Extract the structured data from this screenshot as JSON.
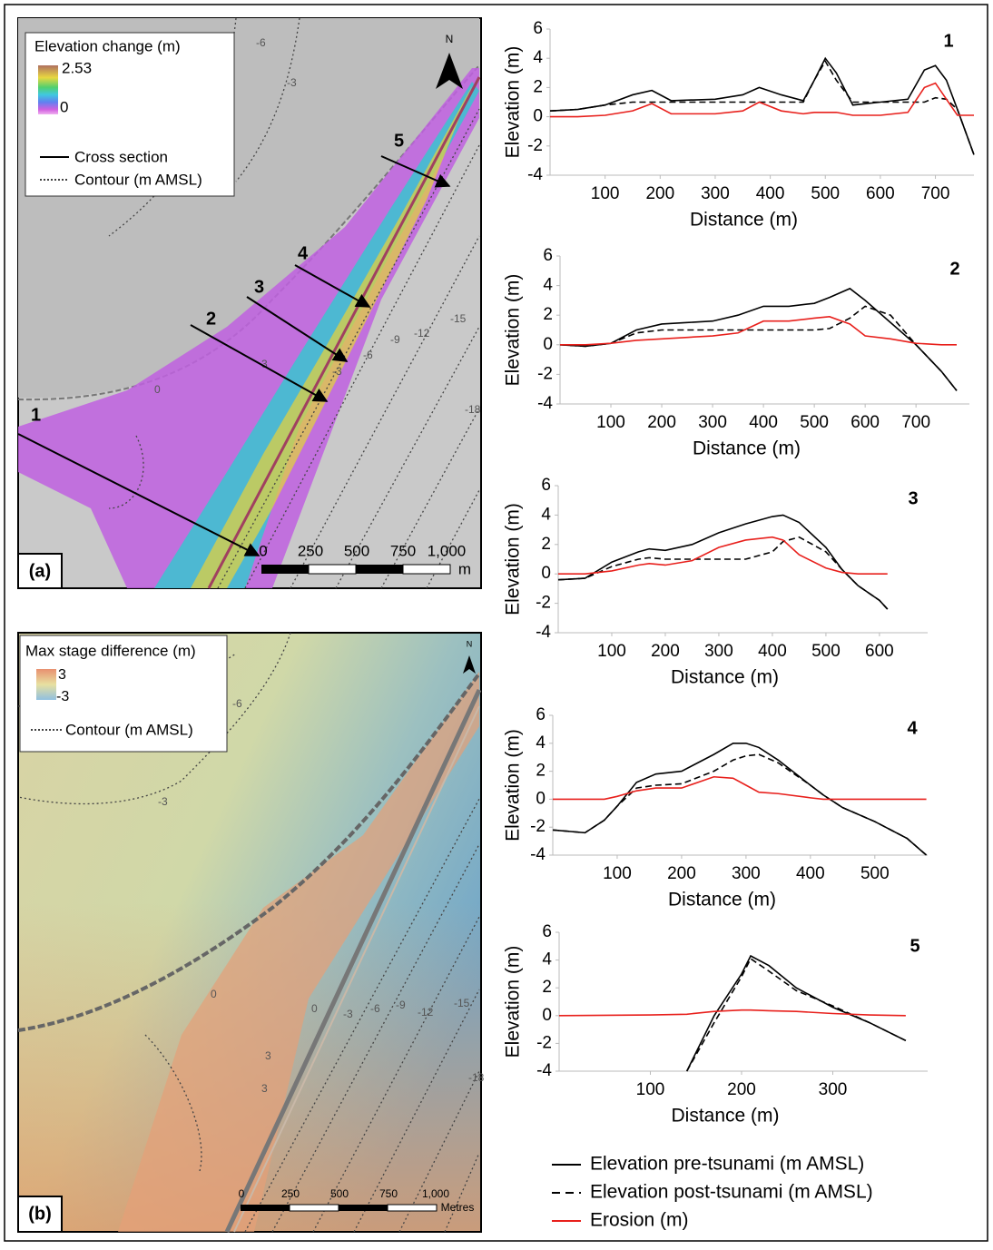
{
  "chart_data": [
    {
      "type": "line",
      "title": "1",
      "x_label": "Distance (m)",
      "y_label": "Elevation (m)",
      "x": [
        0,
        50,
        100,
        150,
        185,
        220,
        300,
        350,
        380,
        420,
        460,
        480,
        500,
        520,
        550,
        600,
        650,
        680,
        700,
        720,
        740,
        770
      ],
      "series": [
        {
          "color": "#000000",
          "values": [
            0.4,
            0.5,
            0.8,
            1.5,
            1.8,
            1.1,
            1.2,
            1.5,
            2.0,
            1.5,
            1.1,
            2.5,
            4.0,
            3.0,
            0.8,
            1.0,
            1.2,
            3.2,
            3.5,
            2.5,
            0.5,
            -2.6
          ]
        },
        {
          "color": "#000000",
          "dashed": true,
          "values": [
            0.4,
            0.5,
            0.8,
            1.0,
            1.0,
            1.0,
            1.0,
            1.0,
            1.0,
            1.0,
            1.0,
            2.5,
            3.8,
            2.5,
            1.0,
            1.0,
            1.0,
            1.0,
            1.3,
            1.2,
            0.5,
            -2.6
          ]
        },
        {
          "color": "#e8201c",
          "values": [
            0,
            0,
            0.1,
            0.4,
            0.9,
            0.2,
            0.2,
            0.4,
            1.0,
            0.4,
            0.2,
            0.3,
            0.3,
            0.3,
            0.1,
            0.1,
            0.3,
            2.0,
            2.3,
            1.2,
            0.1,
            0.1
          ]
        }
      ],
      "xlim": [
        0,
        770
      ],
      "xticks": [
        100,
        200,
        300,
        400,
        500,
        600,
        700
      ],
      "ylim": [
        -4,
        6
      ],
      "yticks": [
        -4,
        -2,
        0,
        2,
        4,
        6
      ],
      "grid": false
    },
    {
      "type": "line",
      "title": "2",
      "x_label": "Distance (m)",
      "y_label": "Elevation (m)",
      "x": [
        0,
        50,
        100,
        150,
        200,
        250,
        300,
        350,
        400,
        450,
        500,
        530,
        570,
        600,
        650,
        700,
        750,
        780
      ],
      "series": [
        {
          "color": "#000000",
          "values": [
            0,
            -0.1,
            0.1,
            1.0,
            1.4,
            1.5,
            1.6,
            2.0,
            2.6,
            2.6,
            2.8,
            3.2,
            3.8,
            3.0,
            1.5,
            0,
            -1.8,
            -3.1
          ]
        },
        {
          "color": "#000000",
          "dashed": true,
          "values": [
            0,
            -0.1,
            0.1,
            0.8,
            1.0,
            1.0,
            1.0,
            1.0,
            1.0,
            1.0,
            1.0,
            1.1,
            1.8,
            2.6,
            2.0,
            0,
            -1.8,
            -3.1
          ]
        },
        {
          "color": "#e8201c",
          "values": [
            0,
            0,
            0.1,
            0.3,
            0.4,
            0.5,
            0.6,
            0.8,
            1.6,
            1.6,
            1.8,
            1.9,
            1.4,
            0.6,
            0.4,
            0.1,
            0,
            0
          ]
        }
      ],
      "xlim": [
        0,
        805
      ],
      "xticks": [
        100,
        200,
        300,
        400,
        500,
        600,
        700
      ],
      "ylim": [
        -4,
        6
      ],
      "yticks": [
        -4,
        -2,
        0,
        2,
        4,
        6
      ],
      "grid": false
    },
    {
      "type": "line",
      "title": "3",
      "x_label": "Distance (m)",
      "y_label": "Elevation (m)",
      "x": [
        0,
        50,
        100,
        150,
        170,
        200,
        250,
        300,
        350,
        400,
        420,
        450,
        500,
        530,
        560,
        600,
        615
      ],
      "series": [
        {
          "color": "#000000",
          "values": [
            -0.4,
            -0.3,
            0.8,
            1.5,
            1.7,
            1.6,
            2.0,
            2.8,
            3.4,
            3.9,
            4.0,
            3.5,
            1.8,
            0.3,
            -0.8,
            -1.8,
            -2.4
          ]
        },
        {
          "color": "#000000",
          "dashed": true,
          "values": [
            -0.4,
            -0.3,
            0.5,
            1.0,
            1.1,
            1.0,
            1.0,
            1.0,
            1.0,
            1.5,
            2.2,
            2.5,
            1.5,
            0.3,
            -0.8,
            -1.8,
            -2.4
          ]
        },
        {
          "color": "#e8201c",
          "values": [
            0,
            0,
            0.2,
            0.6,
            0.7,
            0.6,
            0.9,
            1.8,
            2.3,
            2.5,
            2.3,
            1.3,
            0.4,
            0.1,
            0,
            0,
            0
          ]
        }
      ],
      "xlim": [
        0,
        690
      ],
      "xticks": [
        100,
        200,
        300,
        400,
        500,
        600
      ],
      "ylim": [
        -4,
        6
      ],
      "yticks": [
        -4,
        -2,
        0,
        2,
        4,
        6
      ],
      "grid": false
    },
    {
      "type": "line",
      "title": "4",
      "x_label": "Distance (m)",
      "y_label": "Elevation (m)",
      "x": [
        0,
        50,
        80,
        100,
        130,
        160,
        200,
        250,
        280,
        300,
        320,
        350,
        400,
        420,
        450,
        500,
        550,
        580
      ],
      "series": [
        {
          "color": "#000000",
          "values": [
            -2.2,
            -2.4,
            -1.5,
            -0.5,
            1.2,
            1.8,
            2.0,
            3.2,
            4.0,
            4.0,
            3.7,
            2.8,
            1.0,
            0.3,
            -0.6,
            -1.6,
            -2.8,
            -4.0
          ]
        },
        {
          "color": "#000000",
          "dashed": true,
          "values": [
            -2.2,
            -2.4,
            -1.5,
            -0.5,
            0.8,
            1.0,
            1.1,
            2.0,
            2.8,
            3.1,
            3.2,
            2.6,
            1.0,
            0.3,
            -0.6,
            -1.6,
            -2.8,
            -4.0
          ]
        },
        {
          "color": "#e8201c",
          "values": [
            0,
            0,
            0,
            0.2,
            0.6,
            0.8,
            0.8,
            1.6,
            1.5,
            1.0,
            0.5,
            0.4,
            0.1,
            0,
            0,
            0,
            0,
            0
          ]
        }
      ],
      "xlim": [
        0,
        582
      ],
      "xticks": [
        100,
        200,
        300,
        400,
        500
      ],
      "ylim": [
        -4,
        6
      ],
      "yticks": [
        -4,
        -2,
        0,
        2,
        4,
        6
      ],
      "grid": false
    },
    {
      "type": "line",
      "title": "5",
      "x_label": "Distance (m)",
      "y_label": "Elevation (m)",
      "x": [
        0,
        100,
        140,
        170,
        200,
        210,
        230,
        260,
        300,
        340,
        380
      ],
      "series": [
        {
          "name": "Elevation pre-tsunami (m AMSL)",
          "color": "#000000",
          "values": [
            null,
            null,
            -4,
            0,
            3.0,
            4.3,
            3.6,
            2.0,
            0.6,
            -0.5,
            -1.8
          ]
        },
        {
          "name": "Elevation post-tsunami (m AMSL)",
          "color": "#000000",
          "dashed": true,
          "values": [
            null,
            null,
            -4,
            -0.5,
            2.8,
            4.1,
            3.2,
            1.8,
            0.7,
            -0.5,
            -1.8
          ]
        },
        {
          "name": "Erosion (m)",
          "color": "#e8201c",
          "values": [
            0,
            0.05,
            0.1,
            0.3,
            0.4,
            0.4,
            0.35,
            0.3,
            0.15,
            0.05,
            0
          ]
        }
      ],
      "xlim": [
        0,
        404
      ],
      "xticks": [
        100,
        200,
        300
      ],
      "ylim": [
        -4,
        6
      ],
      "yticks": [
        -4,
        -2,
        0,
        2,
        4,
        6
      ],
      "grid": false
    }
  ],
  "map_a": {
    "legend_title": "Elevation change (m)",
    "legend_max": "2.53",
    "legend_min": "0",
    "legend_items": [
      "Cross section",
      "Contour (m AMSL)"
    ],
    "panel_label": "(a)",
    "north": "N",
    "section_labels": [
      "1",
      "2",
      "3",
      "4",
      "5"
    ],
    "contour_labels": [
      "-6",
      "-3",
      "0",
      "-3",
      "-6",
      "-9",
      "-12",
      "-15",
      "-18",
      "3"
    ],
    "scale_labels": [
      "0",
      "250",
      "500",
      "750",
      "1,000"
    ],
    "scale_unit": "m"
  },
  "map_b": {
    "legend_title": "Max stage difference (m)",
    "legend_max": "3",
    "legend_min": "-3",
    "legend_items": [
      "Contour (m AMSL)"
    ],
    "panel_label": "(b)",
    "north": "N",
    "contour_labels": [
      "-6",
      "-3",
      "0",
      "0",
      "-3",
      "-6",
      "-9",
      "-12",
      "-15",
      "-18",
      "3",
      "3"
    ],
    "scale_labels": [
      "0",
      "250",
      "500",
      "750",
      "1,000"
    ],
    "scale_unit": "Metres"
  }
}
